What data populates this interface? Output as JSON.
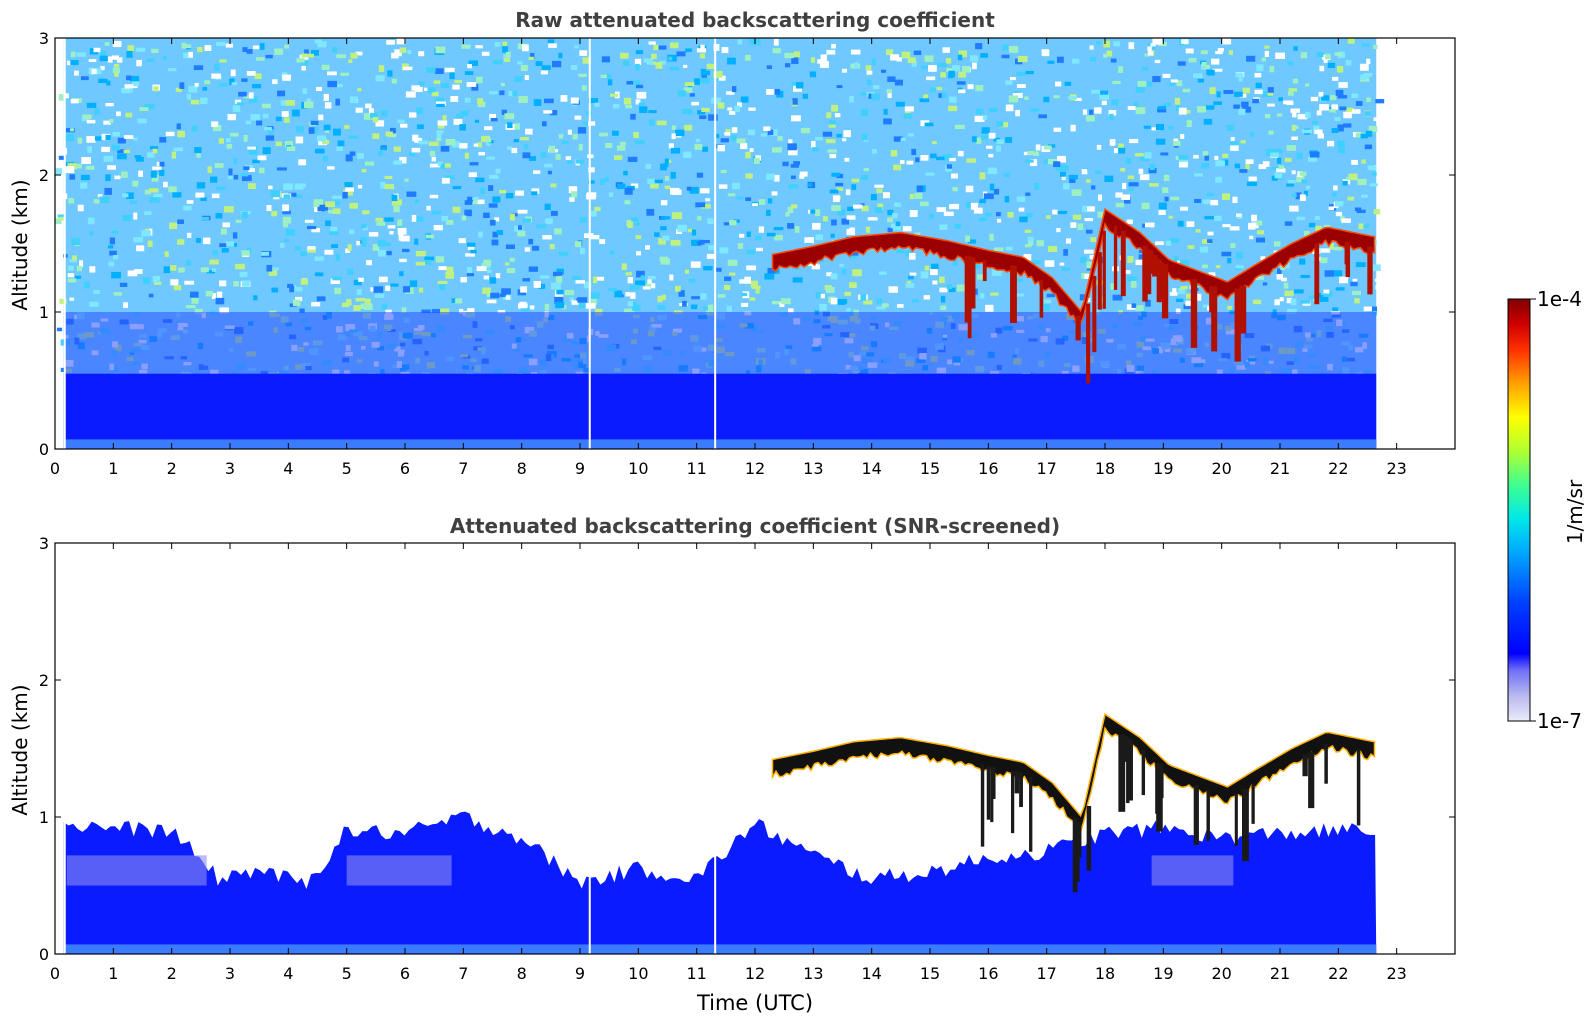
{
  "chart_data": [
    {
      "type": "heatmap",
      "title": "Raw attenuated backscattering coefficient",
      "xlabel": "",
      "ylabel": "Altitude (km)",
      "xlim": [
        0,
        24
      ],
      "ylim": [
        0,
        3
      ],
      "x_ticks": [
        "0",
        "1",
        "2",
        "3",
        "4",
        "5",
        "6",
        "7",
        "8",
        "9",
        "10",
        "11",
        "12",
        "13",
        "14",
        "15",
        "16",
        "17",
        "18",
        "19",
        "20",
        "21",
        "22",
        "23"
      ],
      "y_ticks": [
        "0",
        "1",
        "2",
        "3"
      ],
      "data_extent_hours": [
        0,
        22.65
      ],
      "features": {
        "boundary_layer_km": [
          0,
          0.55
        ],
        "noise_background": true,
        "cloud_layer": [
          {
            "t": 12.3,
            "top_km": 1.42
          },
          {
            "t": 13.0,
            "top_km": 1.48
          },
          {
            "t": 13.7,
            "top_km": 1.55
          },
          {
            "t": 14.5,
            "top_km": 1.58
          },
          {
            "t": 15.3,
            "top_km": 1.52
          },
          {
            "t": 16.0,
            "top_km": 1.45
          },
          {
            "t": 16.6,
            "top_km": 1.4
          },
          {
            "t": 17.1,
            "top_km": 1.25
          },
          {
            "t": 17.6,
            "top_km": 1.0
          },
          {
            "t": 18.0,
            "top_km": 1.75
          },
          {
            "t": 18.6,
            "top_km": 1.58
          },
          {
            "t": 19.1,
            "top_km": 1.38
          },
          {
            "t": 19.6,
            "top_km": 1.3
          },
          {
            "t": 20.1,
            "top_km": 1.22
          },
          {
            "t": 20.6,
            "top_km": 1.35
          },
          {
            "t": 21.2,
            "top_km": 1.5
          },
          {
            "t": 21.8,
            "top_km": 1.62
          },
          {
            "t": 22.6,
            "top_km": 1.55
          }
        ]
      }
    },
    {
      "type": "heatmap",
      "title": "Attenuated backscattering coefficient (SNR-screened)",
      "xlabel": "Time (UTC)",
      "ylabel": "Altitude (km)",
      "xlim": [
        0,
        24
      ],
      "ylim": [
        0,
        3
      ],
      "x_ticks": [
        "0",
        "1",
        "2",
        "3",
        "4",
        "5",
        "6",
        "7",
        "8",
        "9",
        "10",
        "11",
        "12",
        "13",
        "14",
        "15",
        "16",
        "17",
        "18",
        "19",
        "20",
        "21",
        "22",
        "23"
      ],
      "y_ticks": [
        "0",
        "1",
        "2",
        "3"
      ],
      "data_extent_hours": [
        0,
        22.65
      ],
      "features": {
        "boundary_layer_top_km": [
          {
            "t": 0.0,
            "h": 0.95
          },
          {
            "t": 1.0,
            "h": 0.92
          },
          {
            "t": 2.0,
            "h": 0.9
          },
          {
            "t": 2.8,
            "h": 0.55
          },
          {
            "t": 3.5,
            "h": 0.62
          },
          {
            "t": 4.3,
            "h": 0.5
          },
          {
            "t": 5.0,
            "h": 0.9
          },
          {
            "t": 6.0,
            "h": 0.88
          },
          {
            "t": 7.0,
            "h": 1.0
          },
          {
            "t": 8.0,
            "h": 0.85
          },
          {
            "t": 9.0,
            "h": 0.52
          },
          {
            "t": 10.0,
            "h": 0.62
          },
          {
            "t": 11.0,
            "h": 0.55
          },
          {
            "t": 12.0,
            "h": 0.95
          },
          {
            "t": 13.0,
            "h": 0.72
          },
          {
            "t": 14.0,
            "h": 0.55
          },
          {
            "t": 15.0,
            "h": 0.6
          },
          {
            "t": 16.0,
            "h": 0.7
          },
          {
            "t": 17.0,
            "h": 0.75
          },
          {
            "t": 18.0,
            "h": 0.88
          },
          {
            "t": 19.0,
            "h": 0.92
          },
          {
            "t": 20.0,
            "h": 0.85
          },
          {
            "t": 21.0,
            "h": 0.88
          },
          {
            "t": 22.0,
            "h": 0.9
          },
          {
            "t": 22.65,
            "h": 0.9
          }
        ],
        "cloud_layer": "same as raw panel, screened"
      }
    }
  ],
  "colorbar": {
    "label": "1/m/sr",
    "max_label": "1e-4",
    "min_label": "1e-7",
    "colormap": [
      "#e6e6f8",
      "#b8b8f0",
      "#8080f0",
      "#0000ff",
      "#0050ff",
      "#00a0ff",
      "#00e0e0",
      "#40ff80",
      "#c0ff20",
      "#ffff00",
      "#ffa000",
      "#ff4000",
      "#d00000",
      "#800000"
    ]
  }
}
